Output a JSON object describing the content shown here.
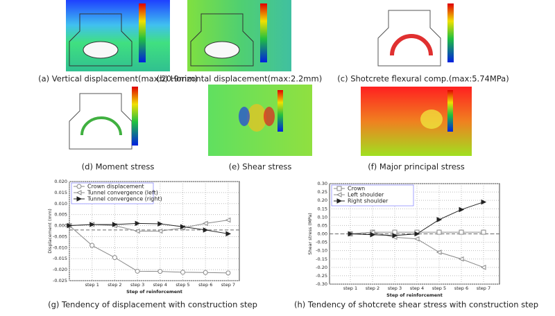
{
  "panels": [
    {
      "caption": "(a) Vertical displacement(max:20.9mm)"
    },
    {
      "caption": "(b) Horizontal displacement(max:2.2mm)"
    },
    {
      "caption": "(c) Shotcrete flexural comp.(max:5.74MPa)"
    },
    {
      "caption": "(d) Moment stress"
    },
    {
      "caption": "(e) Shear stress"
    },
    {
      "caption": "(f) Major principal stress"
    }
  ],
  "chart_data": [
    {
      "type": "line",
      "caption": "(g) Tendency of displacement with construction step",
      "x_label": "Step of reinforcement",
      "y_label": "Displacement (mm)",
      "categories": [
        null,
        "step 1",
        "step 2",
        "step 3",
        "step 4",
        "step 5",
        "step 6",
        "step 7"
      ],
      "series": [
        {
          "name": "Crown displacement",
          "color": "#888888",
          "marker": "circle",
          "values": [
            0,
            -0.009,
            -0.0145,
            -0.0207,
            -0.0208,
            -0.0212,
            -0.0213,
            -0.0215
          ]
        },
        {
          "name": "Tunnel convergence (left)",
          "color": "#888888",
          "marker": "triangle-left",
          "values": [
            0,
            0.0005,
            0,
            -0.0025,
            -0.0025,
            -0.001,
            0.001,
            0.0025
          ]
        },
        {
          "name": "Tunnel convergence (right)",
          "color": "#222222",
          "marker": "triangle-right",
          "values": [
            0,
            0.0005,
            0.0005,
            0.001,
            0.0008,
            -0.0005,
            -0.002,
            -0.0037
          ]
        }
      ],
      "reference_line": -0.002,
      "ylim": [
        -0.025,
        0.02
      ],
      "yticks": [
        {
          "value": -0.025,
          "label": "-0.025"
        },
        {
          "value": -0.02,
          "label": "-0.020"
        },
        {
          "value": -0.015,
          "label": "-0.015"
        },
        {
          "value": -0.01,
          "label": "-0.010"
        },
        {
          "value": -0.005,
          "label": "-0.005"
        },
        {
          "value": 0,
          "label": "0.000"
        },
        {
          "value": 0.005,
          "label": "0.005"
        },
        {
          "value": 0.01,
          "label": "0.010"
        },
        {
          "value": 0.015,
          "label": "0.015"
        },
        {
          "value": 0.02,
          "label": "0.020"
        }
      ],
      "grid": true,
      "legend": "top-left"
    },
    {
      "type": "line",
      "caption": "(h) Tendency of shotcrete shear stress with construction step",
      "x_label": "Step of reinforcement",
      "y_label": "Shear stress (MPa)",
      "categories": [
        "step 1",
        "step 2",
        "step 3",
        "step 4",
        "step 5",
        "step 6",
        "step 7"
      ],
      "series": [
        {
          "name": "Crown",
          "color": "#888888",
          "marker": "square",
          "values": [
            0,
            0.01,
            0.01,
            0.01,
            0.01,
            0.01,
            0.01
          ]
        },
        {
          "name": "Left shoulder",
          "color": "#888888",
          "marker": "triangle-left",
          "values": [
            0,
            0.01,
            -0.02,
            -0.03,
            -0.11,
            -0.15,
            -0.2
          ]
        },
        {
          "name": "Right shoulder",
          "color": "#222222",
          "marker": "triangle-right",
          "values": [
            0,
            -0.005,
            -0.01,
            0,
            0.085,
            0.145,
            0.19
          ]
        }
      ],
      "reference_line": 0,
      "ylim": [
        -0.3,
        0.3
      ],
      "yticks": [
        {
          "value": -0.3,
          "label": "-0.30"
        },
        {
          "value": -0.25,
          "label": "-0.25"
        },
        {
          "value": -0.2,
          "label": "-0.20"
        },
        {
          "value": -0.15,
          "label": "-0.15"
        },
        {
          "value": -0.1,
          "label": "-0.10"
        },
        {
          "value": -0.05,
          "label": "-0.05"
        },
        {
          "value": 0,
          "label": "0.00"
        },
        {
          "value": 0.05,
          "label": "0.05"
        },
        {
          "value": 0.1,
          "label": "0.10"
        },
        {
          "value": 0.15,
          "label": "0.15"
        },
        {
          "value": 0.2,
          "label": "0.20"
        },
        {
          "value": 0.25,
          "label": "0.25"
        },
        {
          "value": 0.3,
          "label": "0.30"
        }
      ],
      "grid": true,
      "legend": "top-left"
    }
  ]
}
